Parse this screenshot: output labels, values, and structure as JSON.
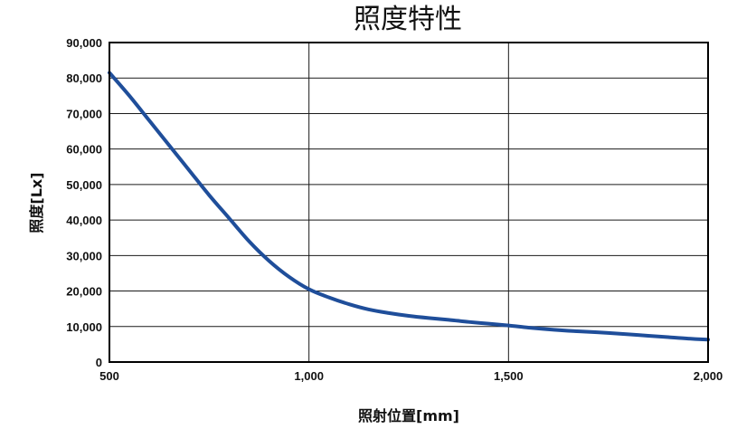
{
  "chart_data": {
    "type": "line",
    "title": "照度特性",
    "xlabel": "照射位置[mm]",
    "ylabel": "照度[Lx]",
    "xlim": [
      500,
      2000
    ],
    "ylim": [
      0,
      90000
    ],
    "x_ticks": [
      500,
      1000,
      1500,
      2000
    ],
    "x_tick_labels": [
      "500",
      "1,000",
      "1,500",
      "2,000"
    ],
    "y_ticks": [
      0,
      10000,
      20000,
      30000,
      40000,
      50000,
      60000,
      70000,
      80000,
      90000
    ],
    "y_tick_labels": [
      "0",
      "10,000",
      "20,000",
      "30,000",
      "40,000",
      "50,000",
      "60,000",
      "70,000",
      "80,000",
      "90,000"
    ],
    "grid": true,
    "legend": "none",
    "series": [
      {
        "color": "#1f4e9a",
        "x": [
          500,
          550,
          600,
          650,
          700,
          750,
          800,
          850,
          900,
          950,
          1000,
          1050,
          1100,
          1150,
          1200,
          1250,
          1300,
          1350,
          1400,
          1450,
          1500,
          1550,
          1600,
          1650,
          1700,
          1750,
          1800,
          1850,
          1900,
          1950,
          2000
        ],
        "y": [
          81500,
          75000,
          68000,
          61000,
          54000,
          47000,
          40500,
          34000,
          28500,
          24000,
          20500,
          18200,
          16300,
          14800,
          13800,
          13000,
          12400,
          11900,
          11300,
          10800,
          10300,
          9700,
          9200,
          8800,
          8500,
          8200,
          7800,
          7400,
          7000,
          6600,
          6300
        ]
      }
    ]
  }
}
